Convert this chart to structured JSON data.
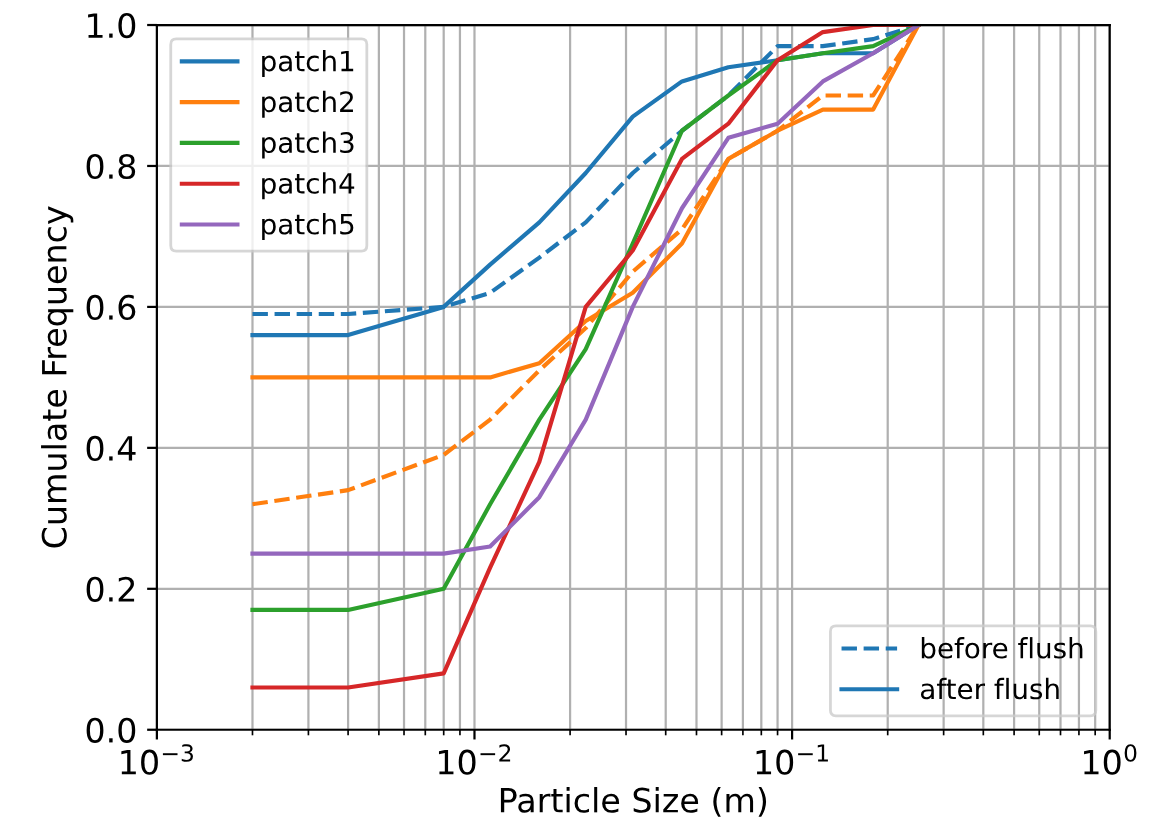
{
  "chart_data": {
    "type": "line",
    "xlabel": "Particle Size (m)",
    "ylabel": "Cumulate Frequency",
    "x": [
      0.002,
      0.004,
      0.008,
      0.0112,
      0.016,
      0.0224,
      0.0315,
      0.045,
      0.063,
      0.09,
      0.125,
      0.18,
      0.25
    ],
    "series": [
      {
        "color": "#1f77b4",
        "line_style": "dashed",
        "values": [
          0.59,
          0.59,
          0.6,
          0.62,
          0.67,
          0.72,
          0.79,
          0.85,
          0.9,
          0.97,
          0.97,
          0.98,
          1.0
        ]
      },
      {
        "color": "#ff7f0e",
        "line_style": "dashed",
        "values": [
          0.32,
          0.34,
          0.39,
          0.44,
          0.51,
          0.57,
          0.65,
          0.71,
          0.81,
          0.85,
          0.9,
          0.9,
          1.0
        ]
      },
      {
        "name": "patch1",
        "color": "#1f77b4",
        "line_style": "solid",
        "values": [
          0.56,
          0.56,
          0.6,
          0.66,
          0.72,
          0.79,
          0.87,
          0.92,
          0.94,
          0.95,
          0.96,
          0.96,
          1.0
        ]
      },
      {
        "name": "patch2",
        "color": "#ff7f0e",
        "line_style": "solid",
        "values": [
          0.5,
          0.5,
          0.5,
          0.5,
          0.52,
          0.58,
          0.62,
          0.69,
          0.81,
          0.85,
          0.88,
          0.88,
          1.0
        ]
      },
      {
        "name": "patch3",
        "color": "#2ca02c",
        "line_style": "solid",
        "values": [
          0.17,
          0.17,
          0.2,
          0.32,
          0.44,
          0.54,
          0.69,
          0.85,
          0.9,
          0.95,
          0.96,
          0.97,
          1.0
        ]
      },
      {
        "name": "patch4",
        "color": "#d62728",
        "line_style": "solid",
        "values": [
          0.06,
          0.06,
          0.08,
          0.23,
          0.38,
          0.6,
          0.68,
          0.81,
          0.86,
          0.95,
          0.99,
          1.0,
          1.0
        ]
      },
      {
        "name": "patch5",
        "color": "#9467bd",
        "line_style": "solid",
        "values": [
          0.25,
          0.25,
          0.25,
          0.26,
          0.33,
          0.44,
          0.6,
          0.74,
          0.84,
          0.86,
          0.92,
          0.96,
          1.0
        ]
      }
    ],
    "annotations": [
      "before flush",
      "after flush"
    ],
    "log": "x",
    "xlim": [
      0.001,
      1
    ],
    "xticks": [
      {
        "value": 0.001,
        "label": "10$^{−3}$"
      },
      {
        "value": 0.01,
        "label": "10$^{−2}$"
      },
      {
        "value": 0.1,
        "label": "10$^{−1}$"
      },
      {
        "value": 1,
        "label": "10$^{0}$"
      }
    ],
    "ylim": [
      0,
      1
    ],
    "yticks": [
      {
        "value": 0,
        "label": "0.0"
      },
      {
        "value": 0.2,
        "label": "0.2"
      },
      {
        "value": 0.4,
        "label": "0.4"
      },
      {
        "value": 0.6,
        "label": "0.6"
      },
      {
        "value": 0.8,
        "label": "0.8"
      },
      {
        "value": 1,
        "label": "1.0"
      }
    ],
    "grid": true,
    "legend": "upper left",
    "marker": "none"
  }
}
